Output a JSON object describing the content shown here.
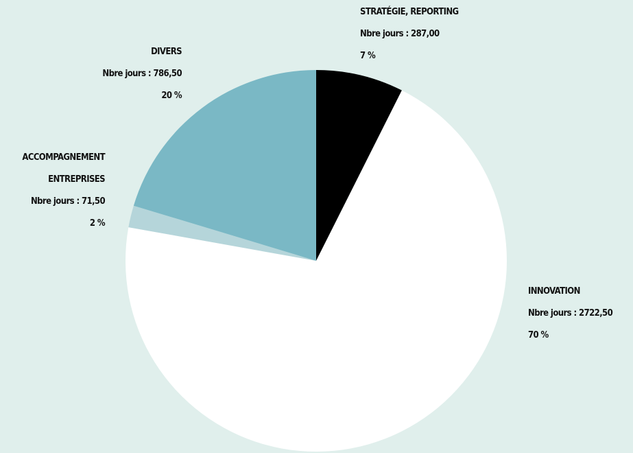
{
  "chart_data": {
    "type": "pie",
    "categories": [
      "STRATÉGIE, REPORTING",
      "INNOVATION",
      "ACCOMPAGNEMENT ENTREPRISES",
      "DIVERS"
    ],
    "values": [
      287,
      2722.5,
      71.5,
      786.5
    ],
    "value_labels": [
      "Nbre jours : 287,00",
      "Nbre jours : 2722,50",
      "Nbre jours : 71,50",
      "Nbre jours : 786,50"
    ],
    "percents": [
      7,
      70,
      2,
      20
    ],
    "percent_labels": [
      "7 %",
      "70 %",
      "2 %",
      "20 %"
    ],
    "colors": [
      "#000000",
      "#ffffff",
      "#b5d5da",
      "#7ab8c5"
    ]
  }
}
